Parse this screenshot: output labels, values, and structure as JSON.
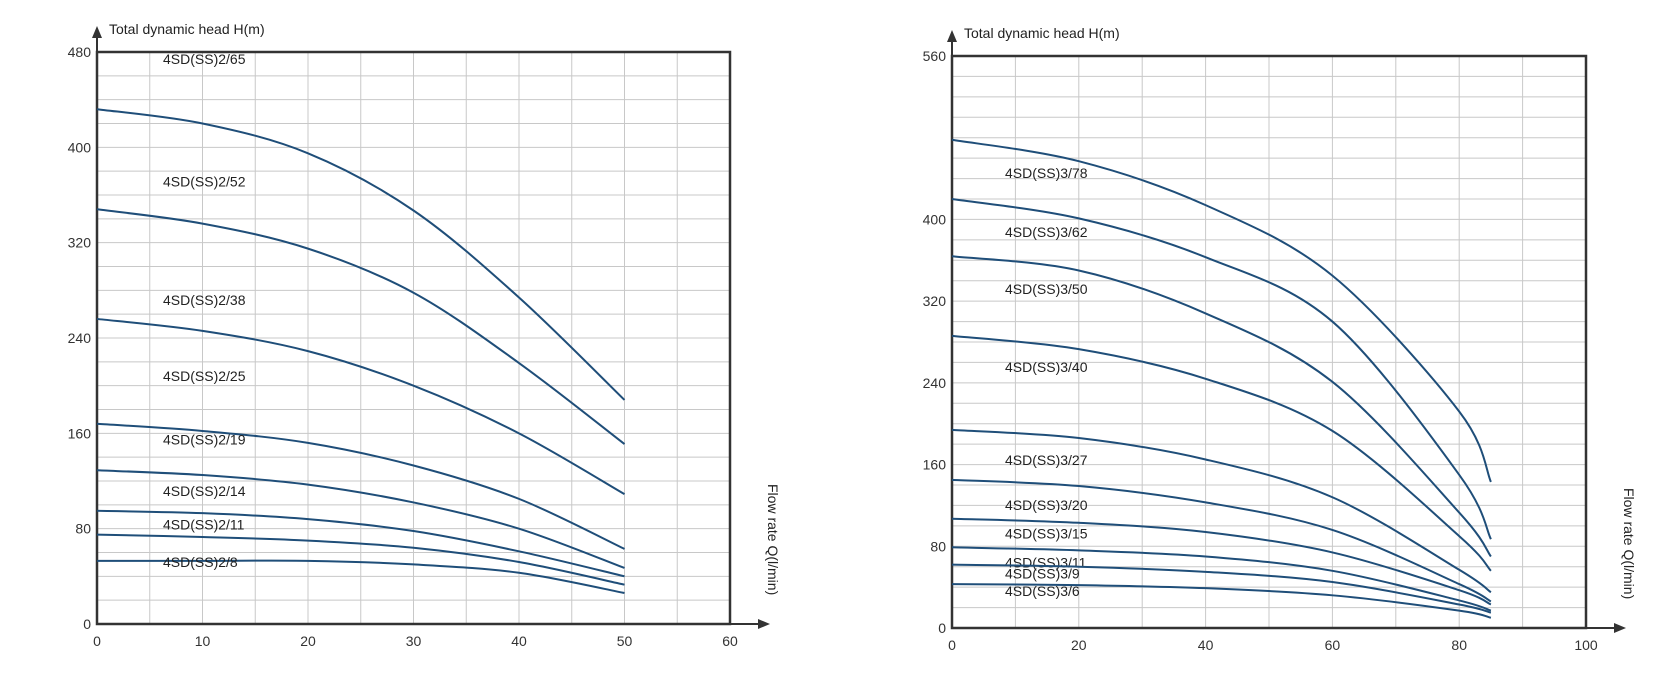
{
  "chart_data": [
    {
      "type": "line",
      "ylabel": "Total dynamic head H(m)",
      "xlabel": "Flow rate Q(l/min)",
      "xlim": [
        0,
        60
      ],
      "ylim": [
        0,
        480
      ],
      "xticks": [
        0,
        10,
        20,
        30,
        40,
        50,
        60
      ],
      "yticks": [
        0,
        80,
        160,
        240,
        320,
        400,
        480
      ],
      "grid": true,
      "series": [
        {
          "name": "4SD(SS)2/65",
          "x": [
            0,
            10,
            20,
            30,
            40,
            50
          ],
          "y": [
            432,
            420,
            395,
            347,
            274,
            188
          ]
        },
        {
          "name": "4SD(SS)2/52",
          "x": [
            0,
            10,
            20,
            30,
            40,
            50
          ],
          "y": [
            348,
            336,
            315,
            278,
            219,
            151
          ]
        },
        {
          "name": "4SD(SS)2/38",
          "x": [
            0,
            10,
            20,
            30,
            40,
            50
          ],
          "y": [
            256,
            246,
            229,
            200,
            160,
            109
          ]
        },
        {
          "name": "4SD(SS)2/25",
          "x": [
            0,
            10,
            20,
            30,
            40,
            50
          ],
          "y": [
            168,
            162,
            152,
            133,
            105,
            63
          ]
        },
        {
          "name": "4SD(SS)2/19",
          "x": [
            0,
            10,
            20,
            30,
            40,
            50
          ],
          "y": [
            129,
            125,
            117,
            102,
            80,
            47
          ]
        },
        {
          "name": "4SD(SS)2/14",
          "x": [
            0,
            10,
            20,
            30,
            40,
            50
          ],
          "y": [
            95,
            93,
            88,
            78,
            61,
            40
          ]
        },
        {
          "name": "4SD(SS)2/11",
          "x": [
            0,
            10,
            20,
            30,
            40,
            50
          ],
          "y": [
            75,
            73,
            70,
            64,
            52,
            33
          ]
        },
        {
          "name": "4SD(SS)2/8",
          "x": [
            0,
            10,
            20,
            30,
            40,
            50
          ],
          "y": [
            53,
            53,
            53,
            50,
            43,
            26
          ]
        }
      ]
    },
    {
      "type": "line",
      "ylabel": "Total dynamic head H(m)",
      "xlabel": "Flow rate Q(l/min)",
      "xlim": [
        0,
        100
      ],
      "ylim": [
        0,
        560
      ],
      "xticks": [
        0,
        20,
        40,
        60,
        80,
        100
      ],
      "yticks": [
        0,
        80,
        160,
        240,
        320,
        400,
        560
      ],
      "grid": true,
      "series": [
        {
          "name": "4SD(SS)3/78",
          "x": [
            0,
            20,
            40,
            60,
            80,
            85
          ],
          "y": [
            478,
            457,
            414,
            345,
            212,
            143
          ]
        },
        {
          "name": "4SD(SS)3/62",
          "x": [
            0,
            20,
            40,
            60,
            80,
            85
          ],
          "y": [
            420,
            401,
            363,
            300,
            150,
            87
          ]
        },
        {
          "name": "4SD(SS)3/50",
          "x": [
            0,
            20,
            40,
            60,
            80,
            85
          ],
          "y": [
            364,
            350,
            308,
            241,
            113,
            70
          ]
        },
        {
          "name": "4SD(SS)3/40",
          "x": [
            0,
            20,
            40,
            60,
            80,
            85
          ],
          "y": [
            286,
            273,
            244,
            193,
            90,
            56
          ]
        },
        {
          "name": "4SD(SS)3/27",
          "x": [
            0,
            20,
            40,
            60,
            80,
            85
          ],
          "y": [
            194,
            186,
            165,
            128,
            57,
            35
          ]
        },
        {
          "name": "4SD(SS)3/20",
          "x": [
            0,
            20,
            40,
            60,
            80,
            85
          ],
          "y": [
            145,
            139,
            123,
            96,
            43,
            26
          ]
        },
        {
          "name": "4SD(SS)3/15",
          "x": [
            0,
            20,
            40,
            60,
            80,
            85
          ],
          "y": [
            107,
            103,
            94,
            74,
            37,
            23
          ]
        },
        {
          "name": "4SD(SS)3/11",
          "x": [
            0,
            20,
            40,
            60,
            80,
            85
          ],
          "y": [
            79,
            76,
            70,
            56,
            27,
            17
          ]
        },
        {
          "name": "4SD(SS)3/9",
          "x": [
            0,
            20,
            40,
            60,
            80,
            85
          ],
          "y": [
            62,
            60,
            55,
            45,
            23,
            15
          ]
        },
        {
          "name": "4SD(SS)3/6",
          "x": [
            0,
            20,
            40,
            60,
            80,
            85
          ],
          "y": [
            43,
            42,
            39,
            32,
            17,
            10
          ]
        }
      ]
    }
  ],
  "colors": {
    "curve": "#1f4e79",
    "grid": "#c8c8c8",
    "frame": "#333333"
  }
}
